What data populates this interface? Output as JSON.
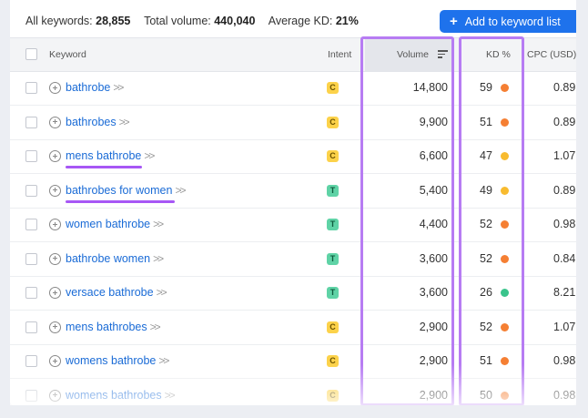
{
  "summary": {
    "all_keywords_label": "All keywords:",
    "all_keywords_value": "28,855",
    "total_volume_label": "Total volume:",
    "total_volume_value": "440,040",
    "average_kd_label": "Average KD:",
    "average_kd_value": "21%"
  },
  "add_button": {
    "label": "Add to keyword list",
    "icon": "plus-icon"
  },
  "table": {
    "headers": {
      "keyword": "Keyword",
      "intent": "Intent",
      "volume": "Volume",
      "kd": "KD %",
      "cpc": "CPC (USD)"
    },
    "rows": [
      {
        "keyword": "bathrobe",
        "intent": "C",
        "volume": "14,800",
        "kd": "59",
        "kd_color": "#f57f33",
        "cpc": "0.89"
      },
      {
        "keyword": "bathrobes",
        "intent": "C",
        "volume": "9,900",
        "kd": "51",
        "kd_color": "#f57f33",
        "cpc": "0.89"
      },
      {
        "keyword": "mens bathrobe",
        "intent": "C",
        "volume": "6,600",
        "kd": "47",
        "kd_color": "#f8bb2f",
        "cpc": "1.07"
      },
      {
        "keyword": "bathrobes for women",
        "intent": "T",
        "volume": "5,400",
        "kd": "49",
        "kd_color": "#f8bb2f",
        "cpc": "0.89"
      },
      {
        "keyword": "women bathrobe",
        "intent": "T",
        "volume": "4,400",
        "kd": "52",
        "kd_color": "#f57f33",
        "cpc": "0.98"
      },
      {
        "keyword": "bathrobe women",
        "intent": "T",
        "volume": "3,600",
        "kd": "52",
        "kd_color": "#f57f33",
        "cpc": "0.84"
      },
      {
        "keyword": "versace bathrobe",
        "intent": "T",
        "volume": "3,600",
        "kd": "26",
        "kd_color": "#3ac48c",
        "cpc": "8.21"
      },
      {
        "keyword": "mens bathrobes",
        "intent": "C",
        "volume": "2,900",
        "kd": "52",
        "kd_color": "#f57f33",
        "cpc": "1.07"
      },
      {
        "keyword": "womens bathrobe",
        "intent": "C",
        "volume": "2,900",
        "kd": "51",
        "kd_color": "#f57f33",
        "cpc": "0.98"
      },
      {
        "keyword": "womens bathrobes",
        "intent": "C",
        "volume": "2,900",
        "kd": "50",
        "kd_color": "#f57f33",
        "cpc": "0.98"
      }
    ]
  },
  "colors": {
    "accent_button": "#1e72ec",
    "link": "#1a6bd6",
    "highlight": "#b77cf3",
    "intent_commercial": "#fcd24a",
    "intent_transactional": "#5fd3a6"
  }
}
